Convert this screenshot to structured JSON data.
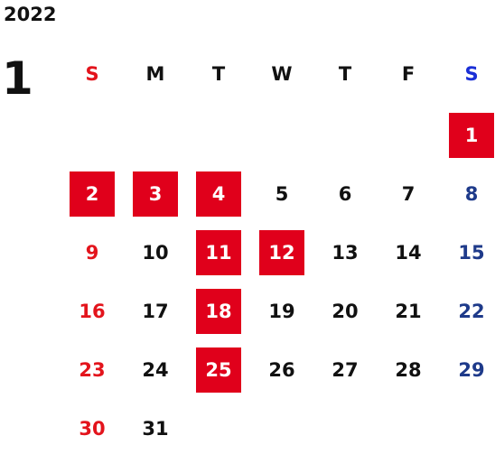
{
  "calendar": {
    "year": "2022",
    "month": "1",
    "weekdays": [
      {
        "label": "S",
        "color": "#e3141c"
      },
      {
        "label": "M",
        "color": "#111111"
      },
      {
        "label": "T",
        "color": "#111111"
      },
      {
        "label": "W",
        "color": "#111111"
      },
      {
        "label": "T",
        "color": "#111111"
      },
      {
        "label": "F",
        "color": "#111111"
      },
      {
        "label": "S",
        "color": "#1a2fd6"
      }
    ],
    "first_weekday_index": 6,
    "days_in_month": 31,
    "colors": {
      "weekday": "#111111",
      "sunday": "#e3141c",
      "saturday": "#1e3a8a",
      "holiday_bg": "#e0001b",
      "holiday_text": "#ffffff"
    },
    "highlighted_days": [
      1,
      2,
      3,
      4,
      11,
      12,
      18,
      25
    ]
  }
}
